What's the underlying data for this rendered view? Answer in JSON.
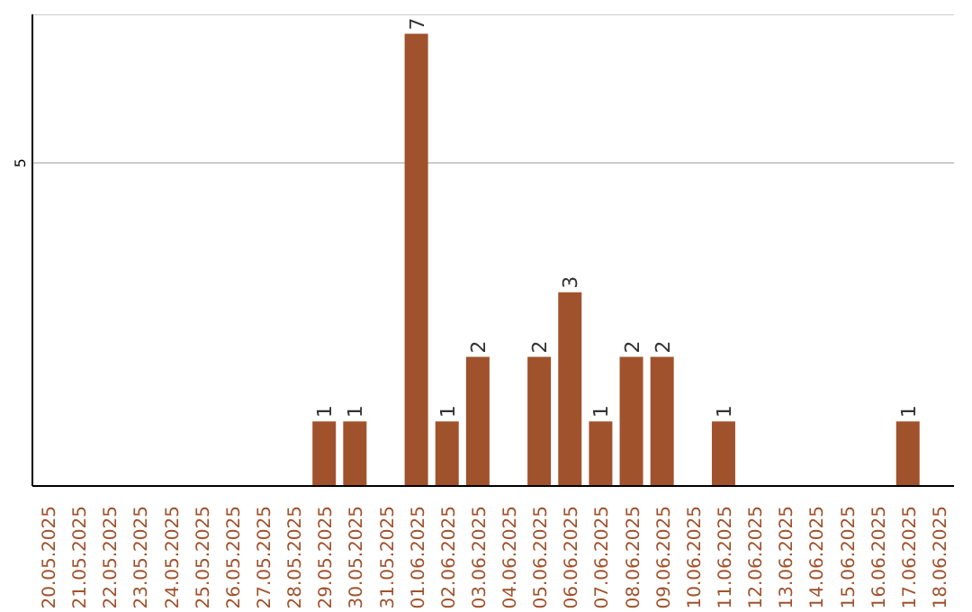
{
  "chart_data": {
    "type": "bar",
    "categories": [
      "20.05.2025",
      "21.05.2025",
      "22.05.2025",
      "23.05.2025",
      "24.05.2025",
      "25.05.2025",
      "26.05.2025",
      "27.05.2025",
      "28.05.2025",
      "29.05.2025",
      "30.05.2025",
      "31.05.2025",
      "01.06.2025",
      "02.06.2025",
      "03.06.2025",
      "04.06.2025",
      "05.06.2025",
      "06.06.2025",
      "07.06.2025",
      "08.06.2025",
      "09.06.2025",
      "10.06.2025",
      "11.06.2025",
      "12.06.2025",
      "13.06.2025",
      "14.06.2025",
      "15.06.2025",
      "16.06.2025",
      "17.06.2025",
      "18.06.2025"
    ],
    "values": [
      0,
      0,
      0,
      0,
      0,
      0,
      0,
      0,
      0,
      1,
      1,
      0,
      7,
      1,
      2,
      0,
      2,
      3,
      1,
      2,
      2,
      0,
      1,
      0,
      0,
      0,
      0,
      0,
      1,
      0
    ],
    "value_labels": [
      null,
      null,
      null,
      null,
      null,
      null,
      null,
      null,
      null,
      "1",
      "1",
      null,
      "7",
      "1",
      "2",
      null,
      "2",
      "3",
      "1",
      "2",
      "2",
      null,
      "1",
      null,
      null,
      null,
      null,
      null,
      "1",
      null
    ],
    "color": "#a0522d",
    "ylim": [
      0,
      7.3
    ],
    "yticks": [
      5
    ],
    "grid": "y"
  }
}
